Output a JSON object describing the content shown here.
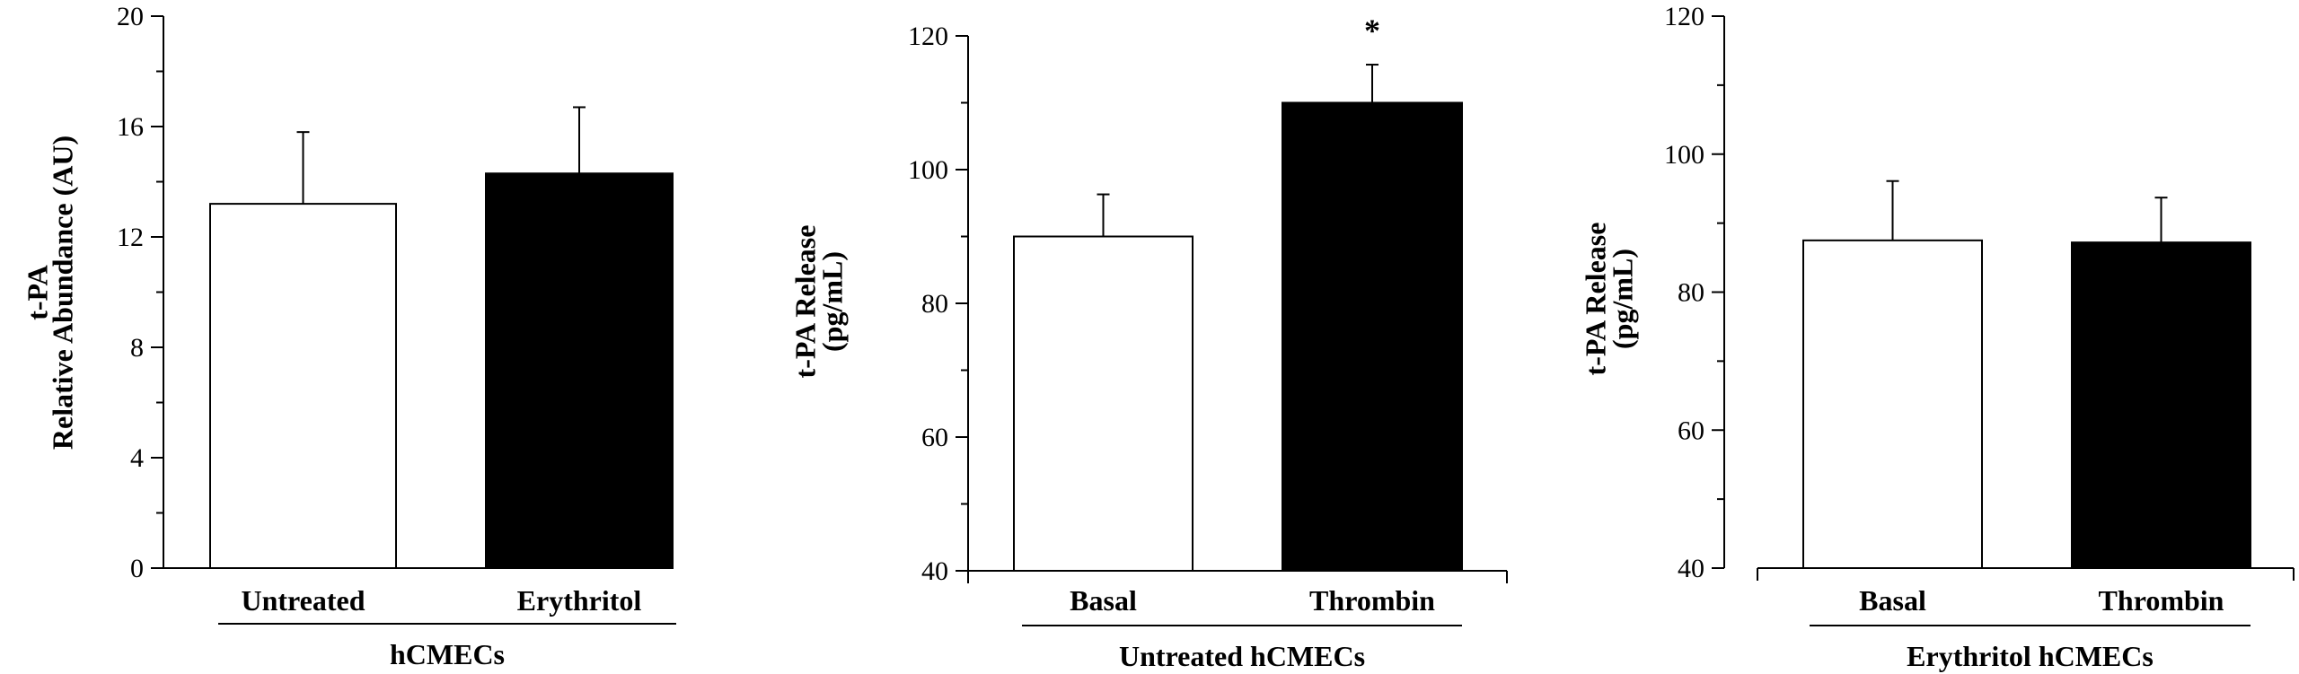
{
  "chart_data": [
    {
      "type": "bar",
      "ylabel_lines": [
        "t-PA",
        "Relative Abundance (AU)"
      ],
      "ylim": [
        0,
        20
      ],
      "yticks": [
        0,
        4,
        8,
        12,
        16,
        20
      ],
      "categories": [
        "Untreated",
        "Erythritol"
      ],
      "values": [
        13.2,
        14.3
      ],
      "errors": [
        2.6,
        2.4
      ],
      "bar_fill": [
        "#ffffff",
        "#000000"
      ],
      "group_label": "hCMECs",
      "annotations": []
    },
    {
      "type": "bar",
      "ylabel_lines": [
        "t-PA Release",
        "(pg/mL)"
      ],
      "ylim": [
        40,
        120
      ],
      "yticks": [
        40,
        60,
        80,
        100,
        120
      ],
      "categories": [
        "Basal",
        "Thrombin"
      ],
      "values": [
        90,
        110
      ],
      "errors": [
        6.3,
        5.7
      ],
      "bar_fill": [
        "#ffffff",
        "#000000"
      ],
      "group_label": "Untreated hCMECs",
      "annotations": [
        {
          "category": "Thrombin",
          "text": "*"
        }
      ]
    },
    {
      "type": "bar",
      "ylabel_lines": [
        "t-PA Release",
        "(pg/mL)"
      ],
      "ylim": [
        40,
        120
      ],
      "yticks": [
        40,
        60,
        80,
        100,
        120
      ],
      "categories": [
        "Basal",
        "Thrombin"
      ],
      "values": [
        87.5,
        87.2
      ],
      "errors": [
        8.6,
        6.5
      ],
      "bar_fill": [
        "#ffffff",
        "#000000"
      ],
      "group_label": "Erythritol hCMECs",
      "annotations": []
    }
  ]
}
